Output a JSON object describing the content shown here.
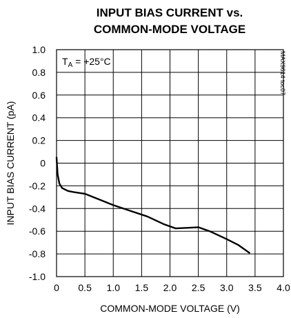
{
  "chart_data": {
    "type": "line",
    "title_lines": [
      "INPUT BIAS CURRENT vs.",
      "COMMON-MODE VOLTAGE"
    ],
    "xlabel": "COMMON-MODE VOLTAGE (V)",
    "ylabel": "INPUT BIAS CURRENT  (pA)",
    "xlim": [
      0,
      4.0
    ],
    "ylim": [
      -1.0,
      1.0
    ],
    "x_ticks": [
      "0",
      "0.5",
      "1.0",
      "1.5",
      "2.0",
      "2.5",
      "3.0",
      "3.5",
      "4.0"
    ],
    "y_ticks": [
      "1.0",
      "0.8",
      "0.6",
      "0.4",
      "0.2",
      "0",
      "-0.2",
      "-0.4",
      "-0.6",
      "-0.8",
      "-1.0"
    ],
    "grid": true,
    "annotation_prefix": "T",
    "annotation_sub": "A",
    "annotation_suffix": " = +25°C",
    "figure_code": "MAX9614 toc07",
    "series": [
      {
        "x": [
          0.0,
          0.02,
          0.05,
          0.1,
          0.2,
          0.3,
          0.5,
          0.8,
          1.0,
          1.3,
          1.6,
          1.9,
          2.1,
          2.3,
          2.5,
          2.7,
          3.0,
          3.2,
          3.4
        ],
        "y": [
          0.05,
          -0.1,
          -0.18,
          -0.22,
          -0.245,
          -0.255,
          -0.27,
          -0.33,
          -0.37,
          -0.42,
          -0.47,
          -0.54,
          -0.575,
          -0.57,
          -0.565,
          -0.6,
          -0.67,
          -0.72,
          -0.79
        ]
      }
    ]
  }
}
